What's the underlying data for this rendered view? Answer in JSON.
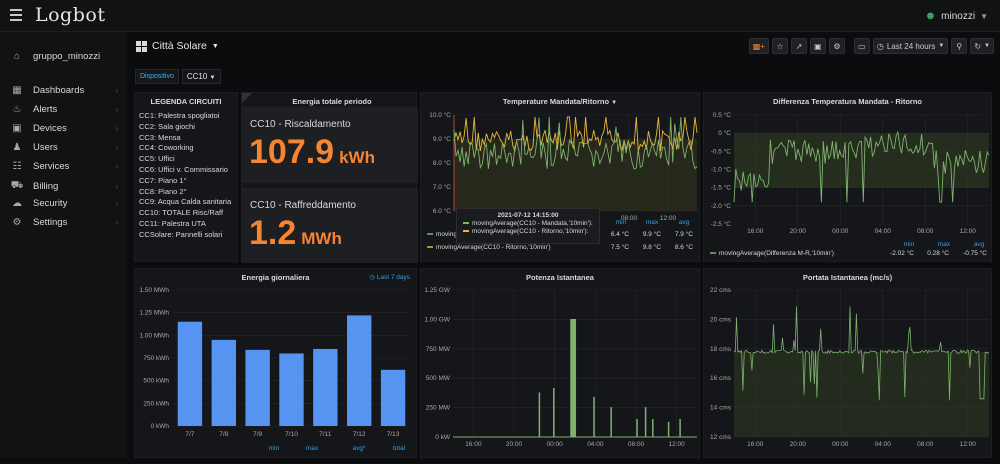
{
  "app": {
    "logo": "Logbot",
    "user": "minozzi"
  },
  "sidebar": {
    "org": "gruppo_minozzi",
    "items": [
      {
        "label": "Dashboards",
        "icon": "dashboards-icon"
      },
      {
        "label": "Alerts",
        "icon": "bell-icon"
      },
      {
        "label": "Devices",
        "icon": "device-icon"
      },
      {
        "label": "Users",
        "icon": "users-icon"
      },
      {
        "label": "Services",
        "icon": "services-icon"
      },
      {
        "label": "Billing",
        "icon": "cart-icon"
      },
      {
        "label": "Security",
        "icon": "cloud-icon"
      },
      {
        "label": "Settings",
        "icon": "gear-icon"
      }
    ]
  },
  "dashboard": {
    "title": "Città Solare",
    "time_range": "Last 24 hours",
    "variable_label": "Dispositivo",
    "variable_value": "CC10"
  },
  "legend_panel": {
    "title": "LEGENDA CIRCUITI",
    "items": [
      "CC1: Palestra spogliatoi",
      "CC2: Sala giochi",
      "CC3: Mensa",
      "CC4: Coworking",
      "CC5: Uffici",
      "CC6: Uffici v. Commissario",
      "CC7: Piano 1°",
      "CC8: Piano 2°",
      "CC9: Acqua Calda sanitaria",
      "CC10: TOTALE Risc/Raff",
      "CC11: Palestra UTA",
      "CCSolare: Pannelli solari"
    ]
  },
  "energy_panel": {
    "title": "Energia totale periodo",
    "heating": {
      "label": "CC10 - Riscaldamento",
      "value": "107.9",
      "unit": "kWh"
    },
    "cooling": {
      "label": "CC10 - Raffreddamento",
      "value": "1.2",
      "unit": "MWh"
    }
  },
  "temp_panel": {
    "title": "Temperature Mandata/Ritorno",
    "yticks": [
      "10.0 °C",
      "9.0 °C",
      "8.0 °C",
      "7.0 °C",
      "6.0 °C"
    ],
    "xticks": [
      "08:00",
      "12:00"
    ],
    "stat_heads": [
      "min",
      "max",
      "avg"
    ],
    "series": [
      {
        "name": "movingAverage(CC10 - Mandata,'10min')",
        "color": "#7eb26d",
        "min": "6.4 °C",
        "max": "9.9 °C",
        "avg": "7.9 °C"
      },
      {
        "name": "movingAverage(CC10 - Ritorno,'10min')",
        "color": "#eab839",
        "min": "7.5 °C",
        "max": "9.8 °C",
        "avg": "8.6 °C"
      }
    ],
    "tooltip": {
      "time": "2021-07-12 14:15:00",
      "rows": [
        "movingAverage(CC10 - Mandata,'10min'):",
        "movingAverage(CC10 - Ritorno,'10min'):"
      ]
    }
  },
  "diff_panel": {
    "title": "Differenza Temperatura Mandata - Ritorno",
    "yticks": [
      "0.5 °C",
      "0 °C",
      "-0.5 °C",
      "-1.0 °C",
      "-1.5 °C",
      "-2.0 °C",
      "-2.5 °C"
    ],
    "xticks": [
      "16:00",
      "20:00",
      "00:00",
      "04:00",
      "08:00",
      "12:00"
    ],
    "stat_heads": [
      "min",
      "max",
      "avg"
    ],
    "series": {
      "name": "movingAverage(Differenza M-R,'10min')",
      "color": "#7eb26d",
      "min": "-2.02 °C",
      "max": "0.28 °C",
      "avg": "-0.75 °C"
    }
  },
  "daily_panel": {
    "title": "Energia giornaliera",
    "range": "Last 7 days",
    "yticks": [
      "1.50 MWh",
      "1.25 MWh",
      "1.00 MWh",
      "750 kWh",
      "500 kWh",
      "250 kWh",
      "0 kWh"
    ],
    "legend_heads": [
      "min",
      "max",
      "avg*",
      "total"
    ]
  },
  "power_panel": {
    "title": "Potenza Istantanea",
    "yticks": [
      "1.25 GW",
      "1.00 GW",
      "750 MW",
      "500 MW",
      "250 MW",
      "0 kW"
    ],
    "xticks": [
      "16:00",
      "20:00",
      "00:00",
      "04:00",
      "08:00",
      "12:00"
    ]
  },
  "flow_panel": {
    "title": "Portata Istantanea (mc/s)",
    "yticks": [
      "22 cms",
      "20 cms",
      "18 cms",
      "16 cms",
      "14 cms",
      "12 cms"
    ],
    "xticks": [
      "16:00",
      "20:00",
      "00:00",
      "04:00",
      "08:00",
      "12:00"
    ]
  },
  "chart_data": [
    {
      "type": "bar",
      "title": "Energia giornaliera",
      "categories": [
        "7/7",
        "7/8",
        "7/9",
        "7/10",
        "7/11",
        "7/12",
        "7/13"
      ],
      "values": [
        1.15,
        0.95,
        0.84,
        0.8,
        0.85,
        1.22,
        0.62
      ],
      "unit": "MWh",
      "ylim": [
        0,
        1.5
      ],
      "color": "#5794f2"
    }
  ]
}
